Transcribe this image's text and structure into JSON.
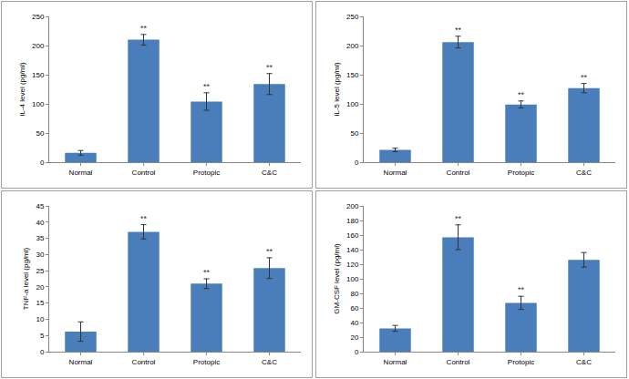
{
  "chart_data": [
    {
      "type": "bar",
      "y_label": "IL-4 level (pg/ml)",
      "categories": [
        "Normal",
        "Control",
        "Protopic",
        "C&C"
      ],
      "values": [
        16,
        210,
        104,
        134
      ],
      "errors": [
        4,
        9,
        15,
        18
      ],
      "color": "#4a7ebb",
      "ylim": [
        0,
        250
      ],
      "yticks": [
        0,
        50,
        100,
        150,
        200,
        250
      ],
      "grid": false,
      "annotations": [
        {
          "category": "Control",
          "text": "**"
        },
        {
          "category": "Protopic",
          "text": "**"
        },
        {
          "category": "C&C",
          "text": "**"
        }
      ]
    },
    {
      "type": "bar",
      "y_label": "IL-5 level (pg/ml)",
      "categories": [
        "Normal",
        "Control",
        "Protopic",
        "C&C"
      ],
      "values": [
        21,
        206,
        99,
        127
      ],
      "errors": [
        3,
        10,
        6,
        8
      ],
      "color": "#4a7ebb",
      "ylim": [
        0,
        250
      ],
      "yticks": [
        0,
        50,
        100,
        150,
        200,
        250
      ],
      "grid": false,
      "annotations": [
        {
          "category": "Control",
          "text": "**"
        },
        {
          "category": "Protopic",
          "text": "**"
        },
        {
          "category": "C&C",
          "text": "**"
        }
      ]
    },
    {
      "type": "bar",
      "y_label": "TNF-a level (pg/ml)",
      "categories": [
        "Normal",
        "Control",
        "Protopic",
        "C&C"
      ],
      "values": [
        6.2,
        37,
        21,
        25.8
      ],
      "errors": [
        3,
        2.2,
        1.5,
        3.2
      ],
      "color": "#4a7ebb",
      "ylim": [
        0,
        45
      ],
      "yticks": [
        0,
        5,
        10,
        15,
        20,
        25,
        30,
        35,
        40,
        45
      ],
      "grid": false,
      "annotations": [
        {
          "category": "Control",
          "text": "**"
        },
        {
          "category": "Protopic",
          "text": "**"
        },
        {
          "category": "C&C",
          "text": "**"
        }
      ]
    },
    {
      "type": "bar",
      "y_label": "GM-CSF level (pg/ml)",
      "categories": [
        "Normal",
        "Control",
        "Protopic",
        "C&C"
      ],
      "values": [
        32,
        157,
        67,
        126
      ],
      "errors": [
        4,
        17,
        9,
        10
      ],
      "color": "#4a7ebb",
      "ylim": [
        0,
        200
      ],
      "yticks": [
        0,
        20,
        40,
        60,
        80,
        100,
        120,
        140,
        160,
        180,
        200
      ],
      "grid": false,
      "annotations": [
        {
          "category": "Control",
          "text": "**"
        },
        {
          "category": "Protopic",
          "text": "**"
        }
      ]
    }
  ]
}
